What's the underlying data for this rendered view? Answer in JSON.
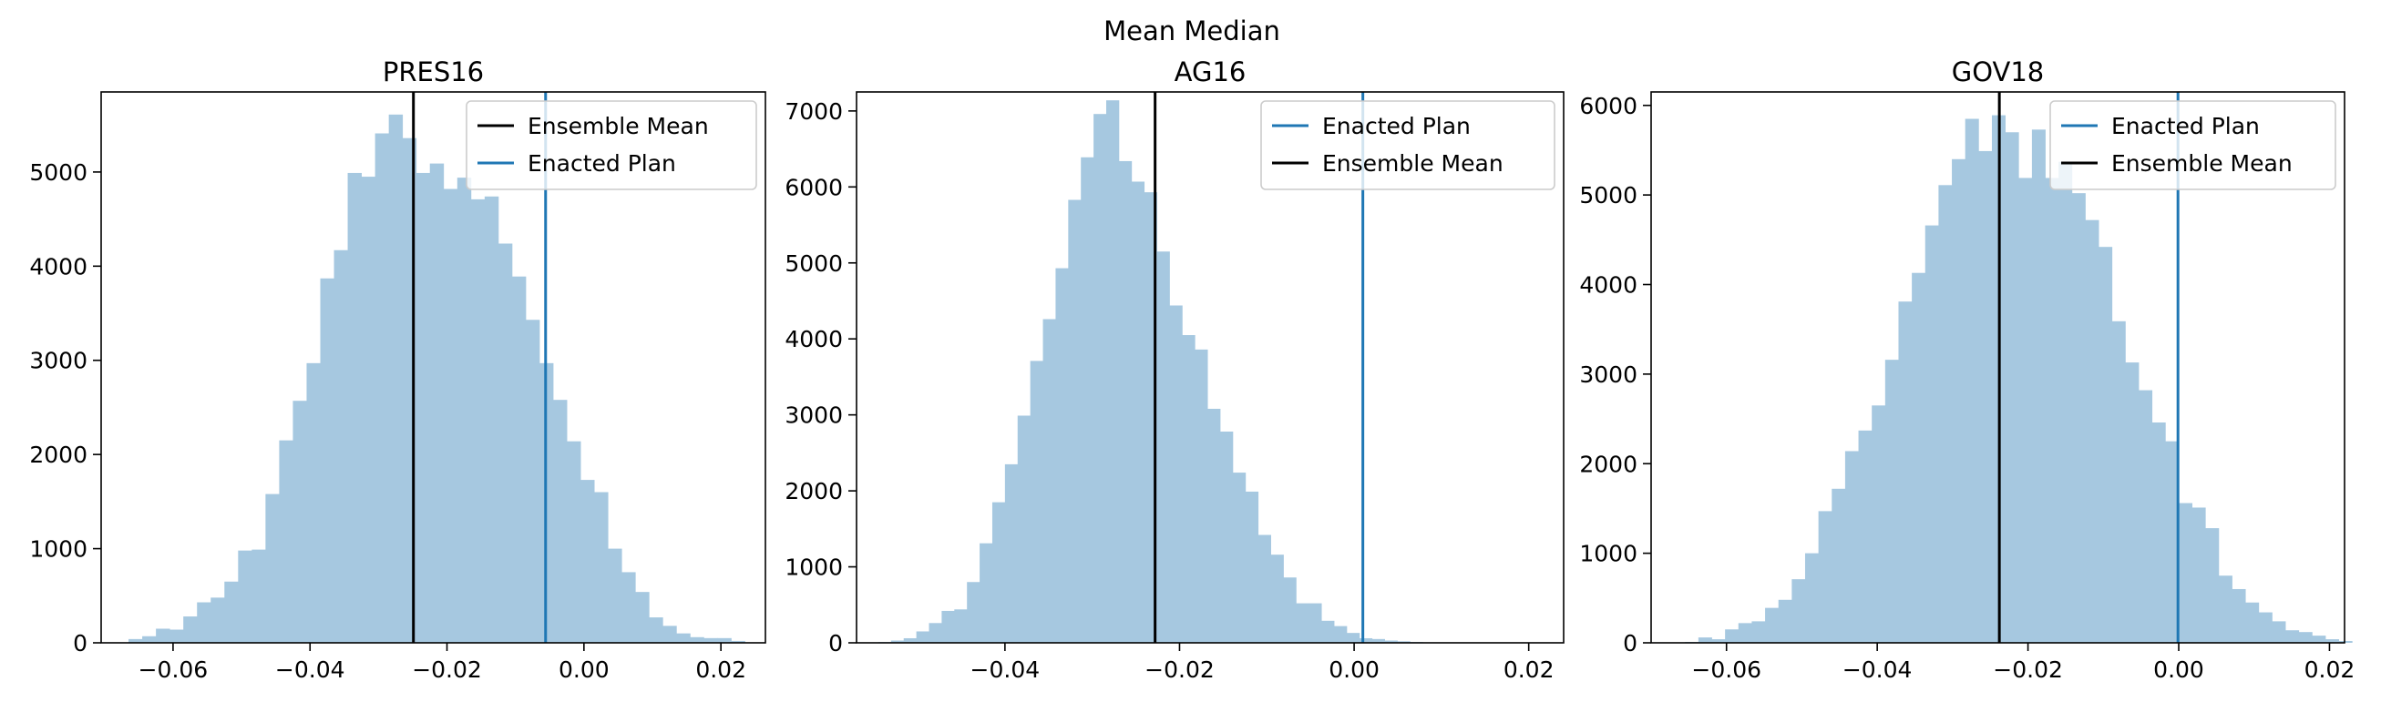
{
  "figure": {
    "suptitle": "Mean Median"
  },
  "chart_data": [
    {
      "type": "histogram",
      "title": "PRES16",
      "xlabel": "",
      "ylabel": "",
      "xlim": [
        -0.0705,
        0.0265
      ],
      "ylim": [
        0,
        5850
      ],
      "xticks": [
        -0.06,
        -0.04,
        -0.02,
        0.0,
        0.02
      ],
      "xtick_labels": [
        "−0.06",
        "−0.04",
        "−0.02",
        "0.00",
        "0.02"
      ],
      "yticks": [
        0,
        1000,
        2000,
        3000,
        4000,
        5000
      ],
      "ytick_labels": [
        "0",
        "1000",
        "2000",
        "3000",
        "4000",
        "5000"
      ],
      "bin_start": -0.0665,
      "bin_width": 0.002,
      "counts": [
        40,
        70,
        150,
        140,
        280,
        430,
        480,
        650,
        980,
        990,
        1580,
        2150,
        2570,
        2970,
        3870,
        4170,
        4990,
        4950,
        5410,
        5610,
        5360,
        4990,
        5090,
        4820,
        4940,
        4710,
        4740,
        4240,
        3890,
        3430,
        2970,
        2580,
        2140,
        1730,
        1600,
        1000,
        750,
        540,
        270,
        180,
        100,
        60,
        50,
        50,
        20
      ],
      "lines": [
        {
          "name": "Ensemble Mean",
          "x": -0.0249,
          "color": "#000000"
        },
        {
          "name": "Enacted Plan",
          "x": -0.0056,
          "color": "#1f77b4"
        }
      ],
      "legend": [
        "Ensemble Mean",
        "Enacted Plan"
      ],
      "legend_loc": "upper right",
      "bar_color": "#a6c8e0",
      "grid": false
    },
    {
      "type": "histogram",
      "title": "AG16",
      "xlabel": "",
      "ylabel": "",
      "xlim": [
        -0.057,
        0.024
      ],
      "ylim": [
        0,
        7250
      ],
      "xticks": [
        -0.04,
        -0.02,
        0.0,
        0.02
      ],
      "xtick_labels": [
        "−0.04",
        "−0.02",
        "0.00",
        "0.02"
      ],
      "yticks": [
        0,
        1000,
        2000,
        3000,
        4000,
        5000,
        6000,
        7000
      ],
      "ytick_labels": [
        "0",
        "1000",
        "2000",
        "3000",
        "4000",
        "5000",
        "6000",
        "7000"
      ],
      "bin_start": -0.0545,
      "bin_width": 0.00145,
      "counts": [
        10,
        30,
        60,
        150,
        260,
        420,
        440,
        800,
        1310,
        1850,
        2350,
        2990,
        3710,
        4260,
        4930,
        5830,
        6390,
        6960,
        7140,
        6340,
        6070,
        5930,
        5150,
        4440,
        4050,
        3860,
        3080,
        2780,
        2240,
        1990,
        1420,
        1160,
        860,
        520,
        520,
        290,
        220,
        130,
        60,
        50,
        30,
        20,
        10
      ],
      "lines": [
        {
          "name": "Enacted Plan",
          "x": 0.001,
          "color": "#1f77b4"
        },
        {
          "name": "Ensemble Mean",
          "x": -0.0228,
          "color": "#000000"
        }
      ],
      "legend": [
        "Enacted Plan",
        "Ensemble Mean"
      ],
      "legend_loc": "upper right",
      "bar_color": "#a6c8e0",
      "grid": false
    },
    {
      "type": "histogram",
      "title": "GOV18",
      "xlabel": "",
      "ylabel": "",
      "xlim": [
        -0.07,
        0.022
      ],
      "ylim": [
        0,
        6150
      ],
      "xticks": [
        -0.06,
        -0.04,
        -0.02,
        0.0,
        0.02
      ],
      "xtick_labels": [
        "−0.06",
        "−0.04",
        "−0.02",
        "0.00",
        "0.02"
      ],
      "yticks": [
        0,
        1000,
        2000,
        3000,
        4000,
        5000,
        6000
      ],
      "ytick_labels": [
        "0",
        "1000",
        "2000",
        "3000",
        "4000",
        "5000",
        "6000"
      ],
      "bin_start": -0.0655,
      "bin_width": 0.00177,
      "counts": [
        10,
        60,
        40,
        150,
        220,
        240,
        390,
        480,
        710,
        1000,
        1470,
        1720,
        2140,
        2370,
        2650,
        3160,
        3810,
        4130,
        4660,
        5110,
        5400,
        5850,
        5490,
        5890,
        5700,
        5190,
        5730,
        5190,
        5370,
        5020,
        4720,
        4420,
        3590,
        3130,
        2820,
        2460,
        2250,
        1560,
        1510,
        1280,
        750,
        600,
        450,
        340,
        240,
        140,
        120,
        80,
        40,
        20
      ],
      "lines": [
        {
          "name": "Enacted Plan",
          "x": -0.0001,
          "color": "#1f77b4"
        },
        {
          "name": "Ensemble Mean",
          "x": -0.0238,
          "color": "#000000"
        }
      ],
      "legend": [
        "Enacted Plan",
        "Ensemble Mean"
      ],
      "legend_loc": "upper right",
      "bar_color": "#a6c8e0",
      "grid": false
    }
  ]
}
